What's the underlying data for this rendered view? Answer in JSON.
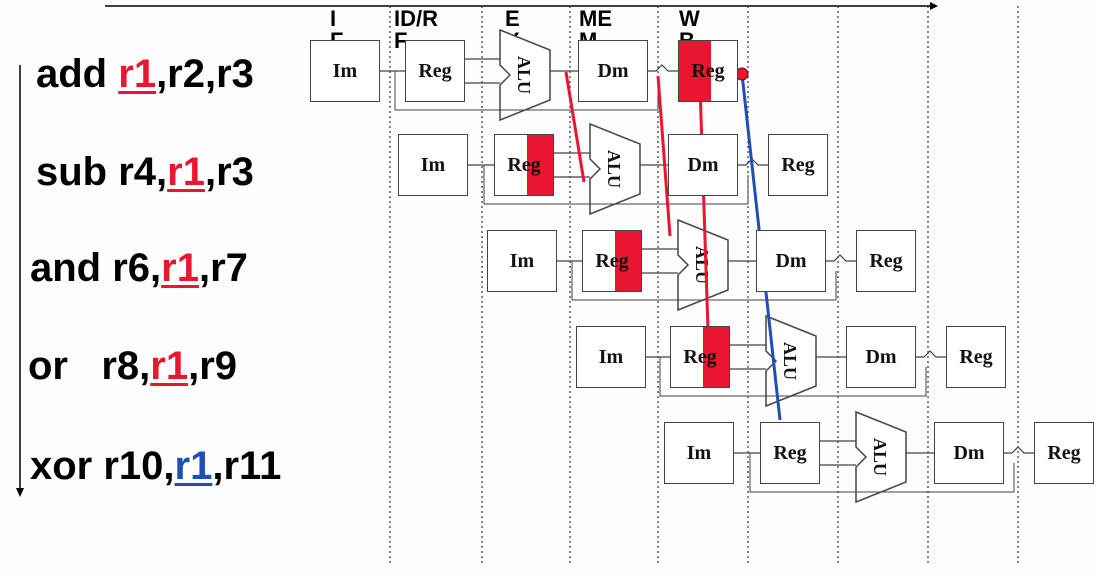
{
  "stages": [
    "I\nF",
    "ID/R\nF",
    "E\nX",
    "ME\nM",
    "W\nB"
  ],
  "instructions": [
    {
      "op": "add",
      "a": "r1",
      "b": ",r2,r3",
      "style": "dest"
    },
    {
      "op": "sub r4,",
      "a": "r1",
      "b": ",r3",
      "style": "src"
    },
    {
      "op": "and r6,",
      "a": "r1",
      "b": ",r7",
      "style": "src"
    },
    {
      "op": "or   r8,",
      "a": "r1",
      "b": ",r9",
      "style": "src"
    },
    {
      "op": "xor r10,",
      "a": "r1",
      "b": ",r11",
      "style": "blue"
    }
  ],
  "block_labels": {
    "im": "Im",
    "reg": "Reg",
    "dm": "Dm",
    "alu": "ALU"
  },
  "colors": {
    "hazard_red": "#e8172f",
    "forward_blue": "#1f4fb5"
  }
}
